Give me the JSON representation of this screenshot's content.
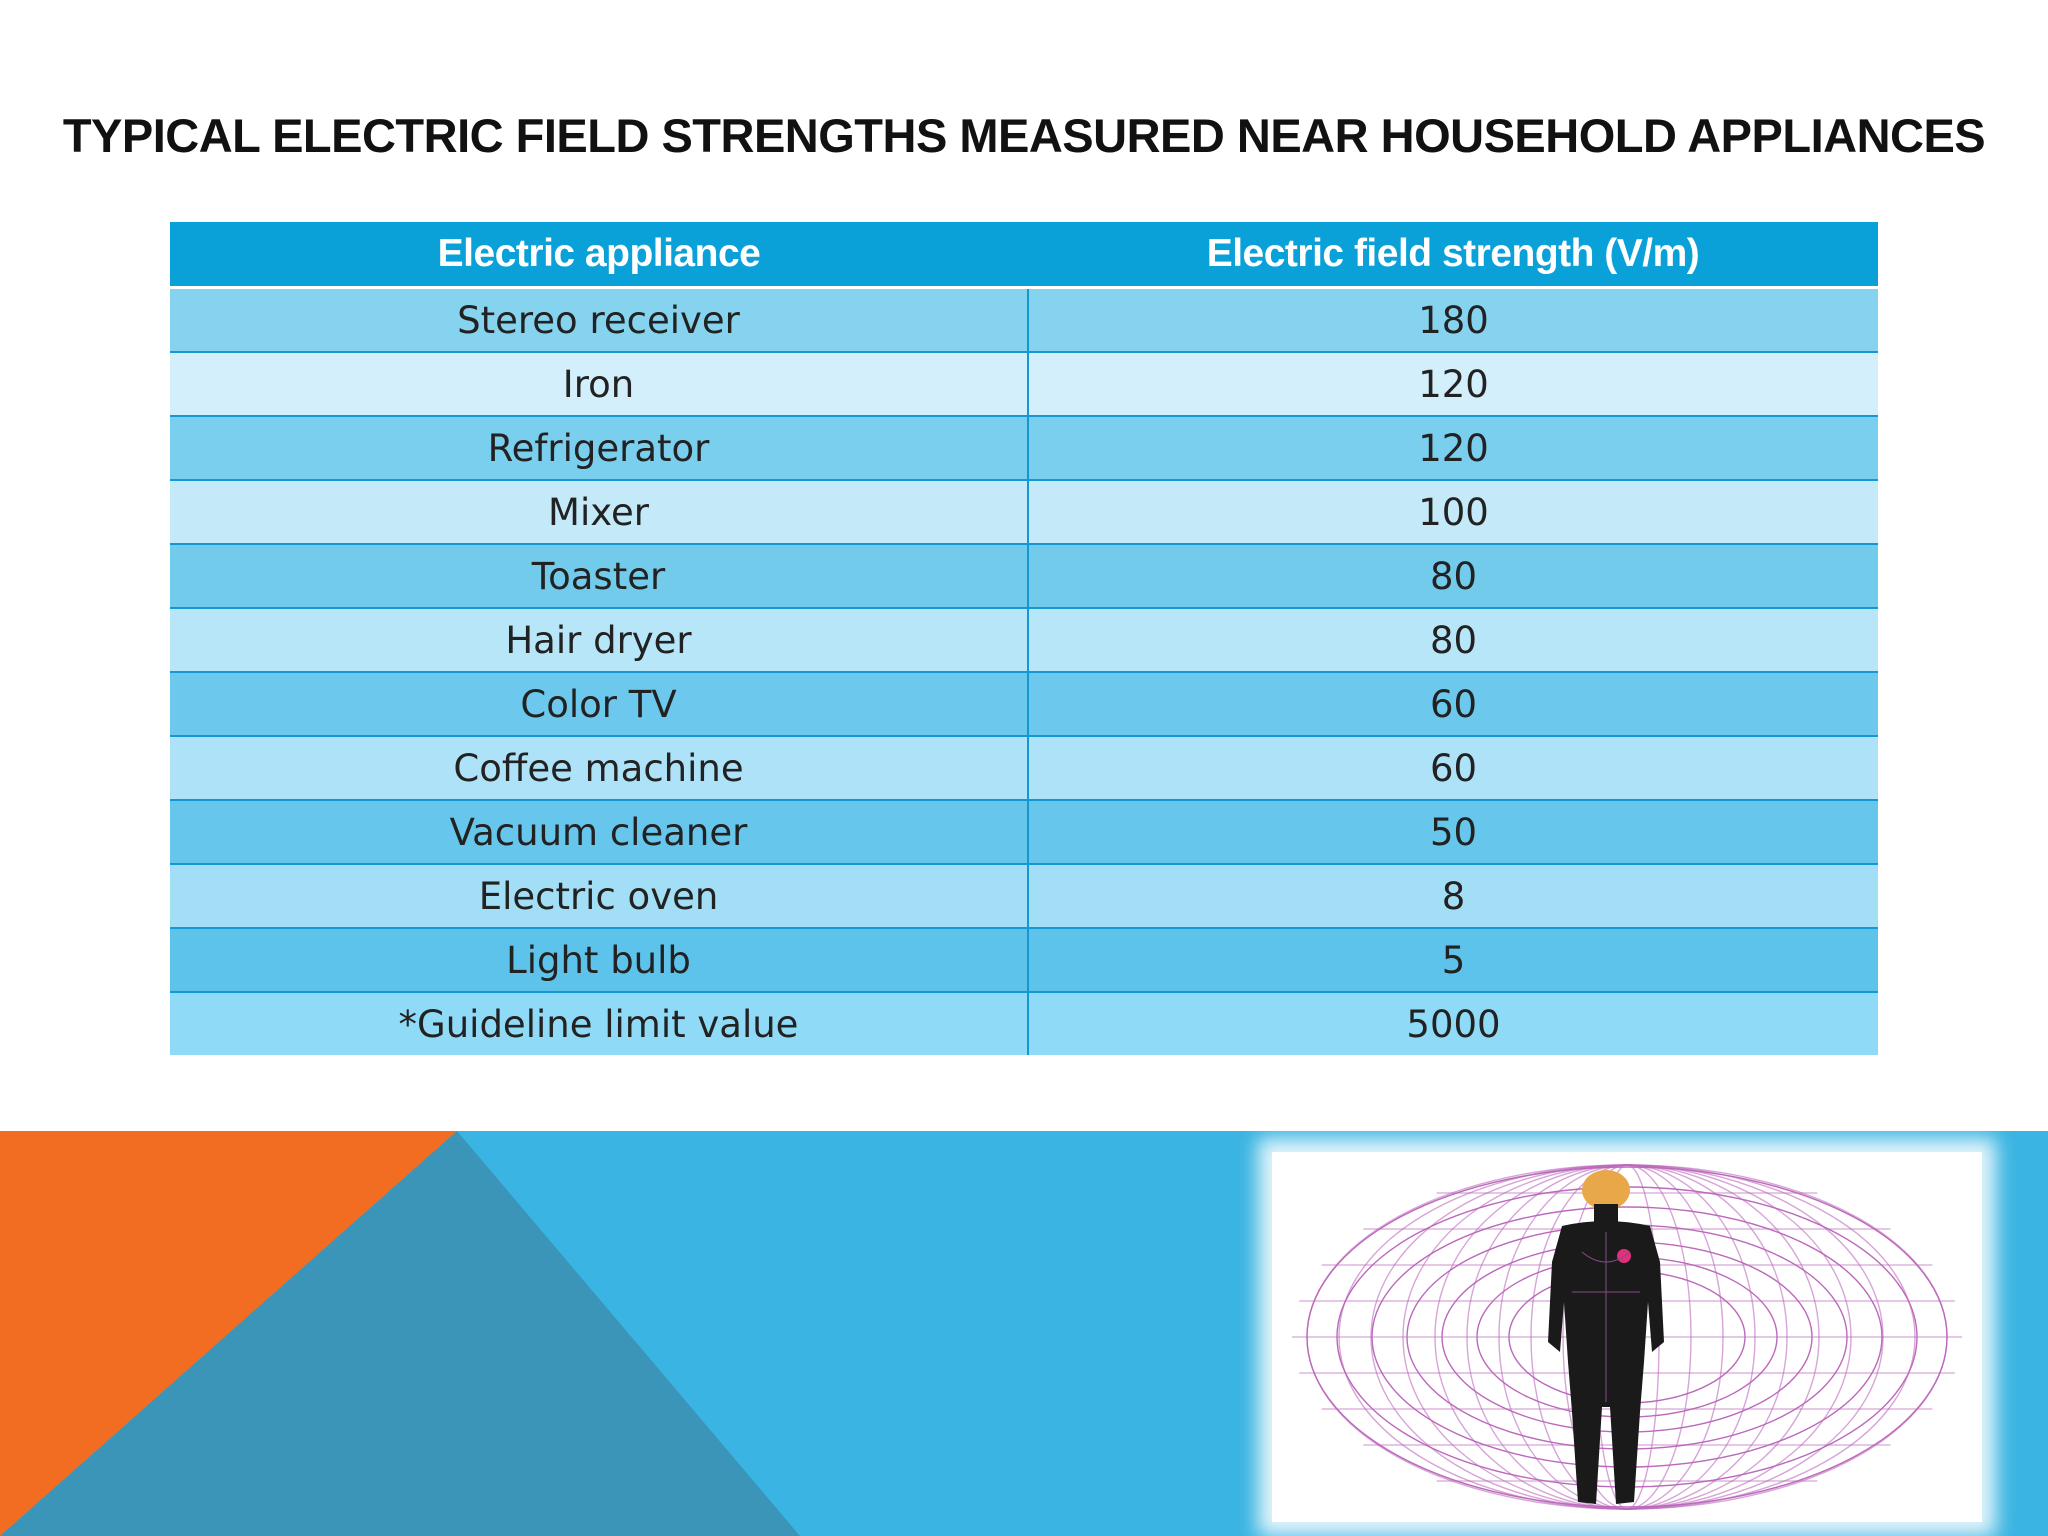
{
  "slide": {
    "title": "TYPICAL ELECTRIC FIELD STRENGTHS MEASURED NEAR HOUSEHOLD APPLIANCES"
  },
  "table": {
    "headers": [
      "Electric appliance",
      "Electric field strength (V/m)"
    ],
    "rows": [
      {
        "appliance": "Stereo receiver",
        "strength": "180"
      },
      {
        "appliance": "Iron",
        "strength": "120"
      },
      {
        "appliance": "Refrigerator",
        "strength": "120"
      },
      {
        "appliance": "Mixer",
        "strength": "100"
      },
      {
        "appliance": "Toaster",
        "strength": "80"
      },
      {
        "appliance": "Hair dryer",
        "strength": "80"
      },
      {
        "appliance": "Color TV",
        "strength": "60"
      },
      {
        "appliance": "Coffee machine",
        "strength": "60"
      },
      {
        "appliance": "Vacuum cleaner",
        "strength": "50"
      },
      {
        "appliance": "Electric oven",
        "strength": "8"
      },
      {
        "appliance": "Light bulb",
        "strength": "5"
      },
      {
        "appliance": "*Guideline limit value",
        "strength": "5000"
      }
    ]
  },
  "colors": {
    "header_blue": "#0aa0d8",
    "band_blue": "#3ab4e2",
    "accent_orange": "#f26c21",
    "triangle_steel": "#3b95b8",
    "field_lines": "#b04fb0"
  },
  "image": {
    "subject": "human figure surrounded by toroidal field lines"
  }
}
